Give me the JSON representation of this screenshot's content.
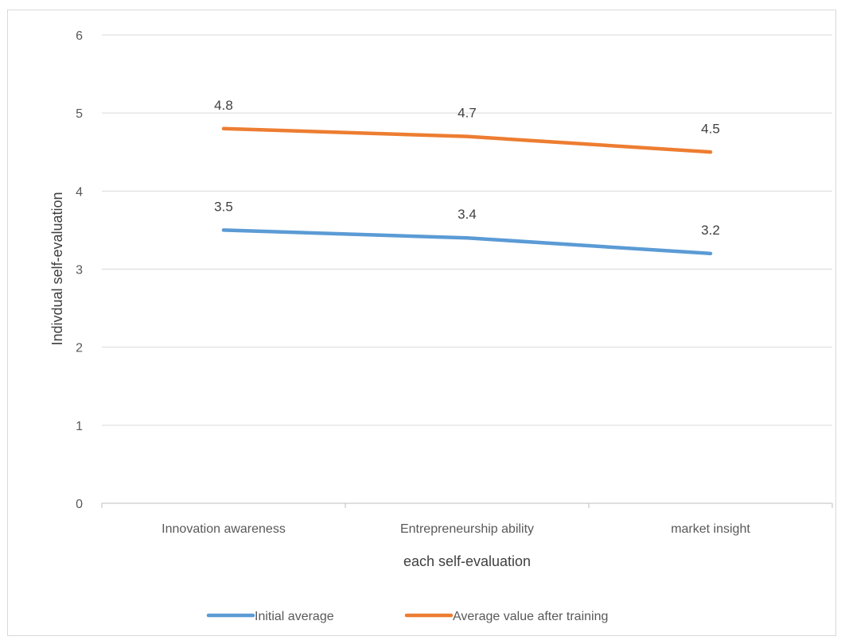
{
  "chart_data": {
    "type": "line",
    "title": "",
    "xlabel": "each self-evaluation",
    "ylabel": "Indivdual self-evaluation",
    "categories": [
      "Innovation awareness",
      "Entrepreneurship ability",
      "market insight"
    ],
    "series": [
      {
        "name": "Initial average",
        "values": [
          3.5,
          3.4,
          3.2
        ],
        "color": "#5b9bd5"
      },
      {
        "name": "Average value after training",
        "values": [
          4.8,
          4.7,
          4.5
        ],
        "color": "#ed7d31"
      }
    ],
    "ylim": [
      0,
      6
    ],
    "yticks": [
      0,
      1,
      2,
      3,
      4,
      5,
      6
    ],
    "grid": true,
    "legend": "bottom-center",
    "data_labels": true
  }
}
